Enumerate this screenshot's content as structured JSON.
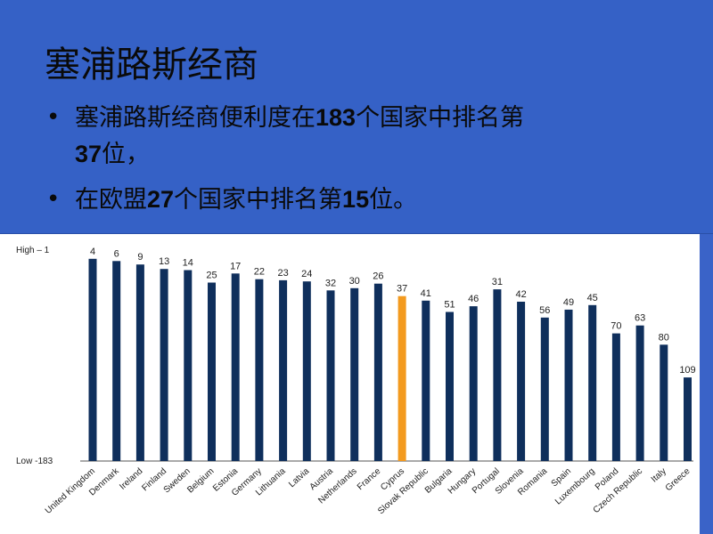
{
  "slide": {
    "title": "塞浦路斯经商",
    "bullets": [
      {
        "pre": "塞浦路斯经商便利度在",
        "n1": "183",
        "mid": "个国家中排名第",
        "n2": "37",
        "post": "位，"
      },
      {
        "pre": "在欧盟",
        "n1": "27",
        "mid": "个国家中排名第",
        "n2": "15",
        "post": "位。"
      }
    ]
  },
  "chart_data": {
    "type": "bar",
    "title": "",
    "xlabel": "",
    "ylabel": "",
    "y_top_label": "High – 1",
    "y_bottom_label": "Low -183",
    "ylim": [
      183,
      1
    ],
    "categories": [
      "United Kingdom",
      "Denmark",
      "Ireland",
      "Finland",
      "Sweden",
      "Belgium",
      "Estonia",
      "Germany",
      "Lithuania",
      "Latvia",
      "Austria",
      "Netherlands",
      "France",
      "Cyprus",
      "Slovak Republic",
      "Bulgaria",
      "Hungary",
      "Portugal",
      "Slovenia",
      "Romania",
      "Spain",
      "Luxembourg",
      "Poland",
      "Czech Republic",
      "Italy",
      "Greece"
    ],
    "values": [
      4,
      6,
      9,
      13,
      14,
      25,
      17,
      22,
      23,
      24,
      32,
      30,
      26,
      37,
      41,
      51,
      46,
      31,
      42,
      56,
      49,
      45,
      70,
      63,
      80,
      109
    ],
    "highlight_index": 13,
    "colors": {
      "bar": "#0f2f5c",
      "highlight": "#f39a1e",
      "axis": "#555555"
    }
  }
}
